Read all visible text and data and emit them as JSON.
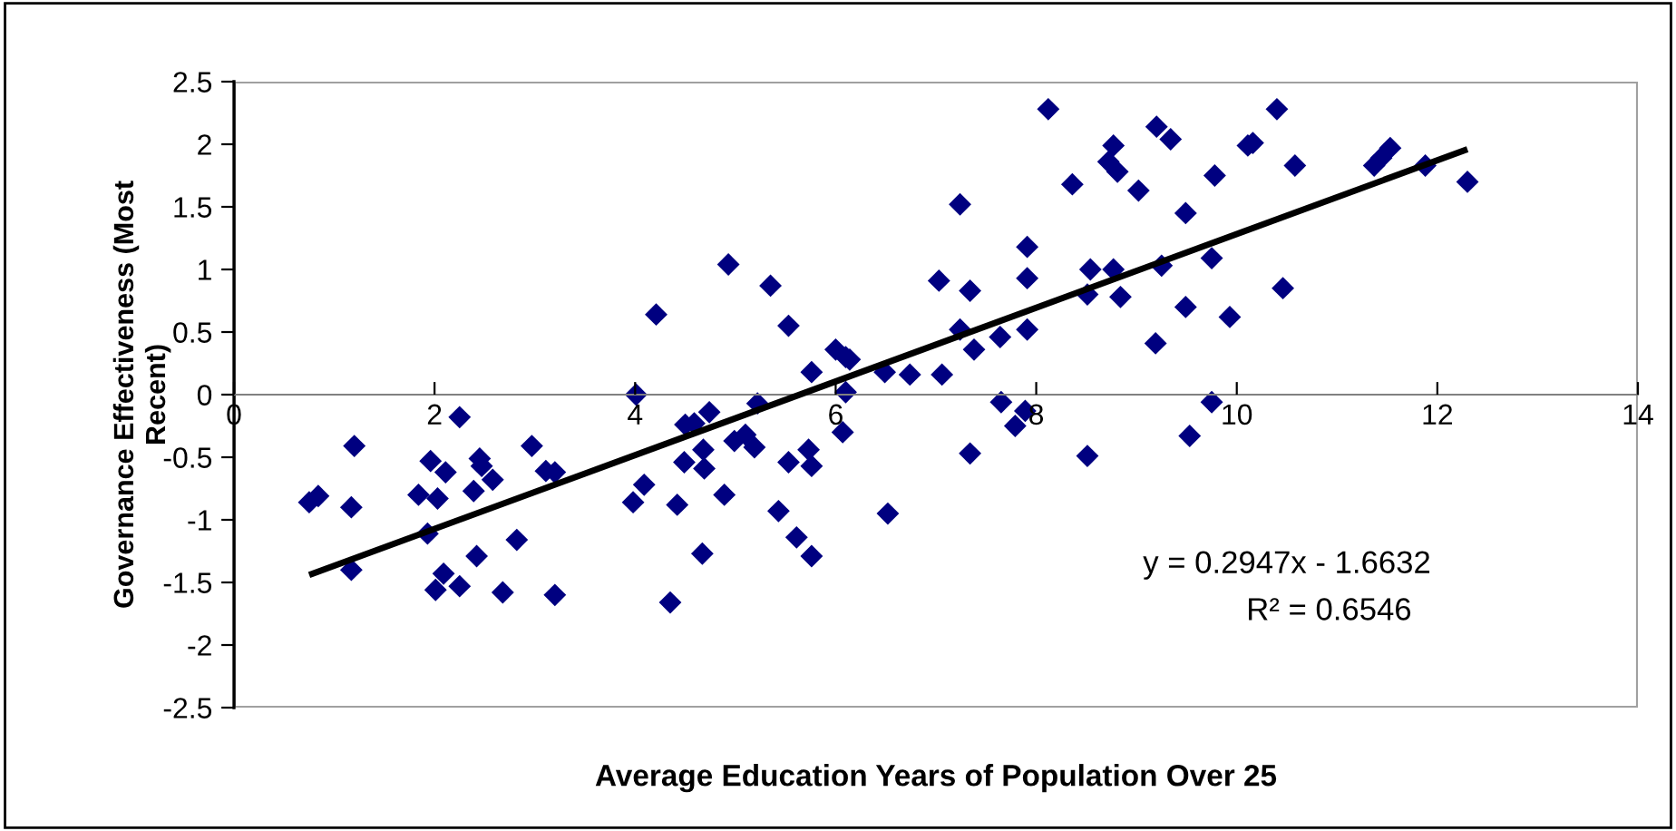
{
  "chart_data": {
    "type": "scatter",
    "xlabel": "Average Education Years of Population Over 25",
    "ylabel": "Governance Effectiveness (Most\nRecent)",
    "xlim": [
      0,
      14
    ],
    "xticks": [
      0,
      2,
      4,
      6,
      8,
      10,
      12,
      14
    ],
    "ylim": [
      -2.5,
      2.5
    ],
    "yticks": [
      -2.5,
      -2,
      -1.5,
      -1,
      -0.5,
      0,
      0.5,
      1,
      1.5,
      2,
      2.5
    ],
    "grid": false,
    "legend": false,
    "marker": "diamond",
    "annotations": [
      "y = 0.2947x - 1.6632",
      "R² = 0.6546"
    ],
    "series": [
      {
        "color": "#000080",
        "x": [
          0.75,
          0.84,
          1.2,
          1.17,
          1.17,
          1.84,
          1.96,
          1.93,
          2.03,
          2.11,
          2.01,
          2.09,
          2.25,
          2.25,
          2.39,
          2.45,
          2.47,
          2.58,
          2.42,
          2.68,
          2.82,
          2.97,
          3.11,
          3.2,
          3.2,
          4.01,
          4.21,
          3.98,
          4.09,
          4.42,
          4.35,
          4.5,
          4.59,
          4.49,
          4.68,
          4.69,
          4.67,
          4.74,
          4.93,
          4.89,
          5.22,
          4.99,
          5.1,
          5.19,
          5.35,
          5.43,
          5.53,
          5.53,
          5.61,
          5.73,
          5.76,
          5.76,
          5.76,
          6.0,
          6.1,
          6.14,
          6.1,
          6.07,
          6.49,
          6.52,
          6.74,
          7.03,
          7.06,
          7.24,
          7.24,
          7.34,
          7.34,
          7.38,
          7.64,
          7.65,
          7.79,
          7.89,
          7.91,
          7.91,
          7.91,
          8.12,
          8.36,
          8.51,
          8.54,
          8.51,
          8.77,
          8.72,
          8.81,
          8.77,
          8.84,
          9.02,
          9.2,
          9.19,
          9.34,
          9.25,
          9.49,
          9.49,
          9.53,
          9.75,
          9.75,
          9.78,
          9.93,
          10.11,
          10.16,
          10.4,
          10.46,
          10.58,
          11.37,
          11.44,
          11.53,
          11.88,
          12.3
        ],
        "values": [
          -0.86,
          -0.81,
          -0.41,
          -0.9,
          -1.4,
          -0.8,
          -0.53,
          -1.11,
          -0.83,
          -0.62,
          -1.56,
          -1.43,
          -1.53,
          -0.18,
          -0.77,
          -0.51,
          -0.57,
          -0.68,
          -1.29,
          -1.58,
          -1.16,
          -0.41,
          -0.61,
          -0.62,
          -1.6,
          0.0,
          0.64,
          -0.86,
          -0.72,
          -0.88,
          -1.66,
          -0.24,
          -0.23,
          -0.54,
          -0.44,
          -0.59,
          -1.27,
          -0.14,
          1.04,
          -0.8,
          -0.07,
          -0.37,
          -0.32,
          -0.42,
          0.87,
          -0.93,
          0.55,
          -0.54,
          -1.14,
          -0.44,
          0.18,
          -0.57,
          -1.29,
          0.36,
          0.3,
          0.28,
          0.02,
          -0.3,
          0.18,
          -0.95,
          0.16,
          0.91,
          0.16,
          1.52,
          0.52,
          0.83,
          -0.47,
          0.36,
          0.46,
          -0.06,
          -0.25,
          -0.13,
          1.18,
          0.93,
          0.52,
          2.28,
          1.68,
          -0.49,
          1.0,
          0.8,
          1.99,
          1.86,
          1.78,
          1.0,
          0.78,
          1.63,
          2.14,
          0.41,
          2.04,
          1.03,
          1.45,
          0.7,
          -0.33,
          -0.06,
          1.09,
          1.75,
          0.62,
          1.99,
          2.01,
          2.28,
          0.85,
          1.83,
          1.83,
          1.89,
          1.97,
          1.83,
          1.7
        ]
      },
      {
        "type": "line",
        "marker": "none",
        "color": "#000000",
        "x": [
          0.75,
          12.3
        ],
        "values": [
          -1.44,
          1.96
        ]
      }
    ]
  }
}
